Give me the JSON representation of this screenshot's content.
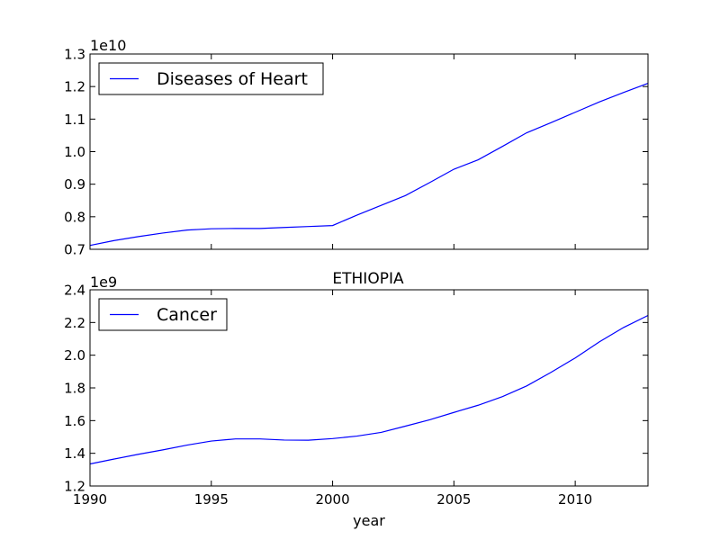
{
  "chart_data": [
    {
      "type": "line",
      "title": "",
      "xlabel": "",
      "ylabel": "",
      "offset_label": "1e10",
      "xlim": [
        1990,
        2013
      ],
      "ylim": [
        0.7,
        1.3
      ],
      "xticks": [
        1990,
        1995,
        2000,
        2005,
        2010
      ],
      "xtick_labels": [],
      "yticks": [
        0.7,
        0.8,
        0.9,
        1.0,
        1.1,
        1.2,
        1.3
      ],
      "ytick_labels": [
        "0.7",
        "0.8",
        "0.9",
        "1.0",
        "1.1",
        "1.2",
        "1.3"
      ],
      "grid": false,
      "legend_position": "upper-left",
      "x": [
        1990,
        1991,
        1992,
        1993,
        1994,
        1995,
        1996,
        1997,
        1998,
        1999,
        2000,
        2001,
        2002,
        2003,
        2004,
        2005,
        2006,
        2007,
        2008,
        2009,
        2010,
        2011,
        2012,
        2013
      ],
      "series": [
        {
          "name": "Diseases of Heart",
          "color": "#0000ff",
          "values": [
            0.712,
            0.727,
            0.739,
            0.75,
            0.759,
            0.763,
            0.764,
            0.764,
            0.767,
            0.77,
            0.773,
            0.805,
            0.835,
            0.865,
            0.905,
            0.946,
            0.975,
            1.016,
            1.058,
            1.089,
            1.121,
            1.153,
            1.182,
            1.21
          ]
        }
      ]
    },
    {
      "type": "line",
      "title": "ETHIOPIA",
      "xlabel": "year",
      "ylabel": "",
      "offset_label": "1e9",
      "xlim": [
        1990,
        2013
      ],
      "ylim": [
        1.2,
        2.4
      ],
      "xticks": [
        1990,
        1995,
        2000,
        2005,
        2010
      ],
      "xtick_labels": [
        "1990",
        "1995",
        "2000",
        "2005",
        "2010"
      ],
      "yticks": [
        1.2,
        1.4,
        1.6,
        1.8,
        2.0,
        2.2,
        2.4
      ],
      "ytick_labels": [
        "1.2",
        "1.4",
        "1.6",
        "1.8",
        "2.0",
        "2.2",
        "2.4"
      ],
      "grid": false,
      "legend_position": "upper-left",
      "x": [
        1990,
        1991,
        1992,
        1993,
        1994,
        1995,
        1996,
        1997,
        1998,
        1999,
        2000,
        2001,
        2002,
        2003,
        2004,
        2005,
        2006,
        2007,
        2008,
        2009,
        2010,
        2011,
        2012,
        2013
      ],
      "series": [
        {
          "name": "Cancer",
          "color": "#0000ff",
          "values": [
            1.335,
            1.365,
            1.394,
            1.421,
            1.45,
            1.475,
            1.488,
            1.488,
            1.481,
            1.48,
            1.49,
            1.505,
            1.528,
            1.566,
            1.605,
            1.65,
            1.694,
            1.747,
            1.812,
            1.895,
            1.983,
            2.082,
            2.17,
            2.243
          ]
        }
      ]
    }
  ]
}
